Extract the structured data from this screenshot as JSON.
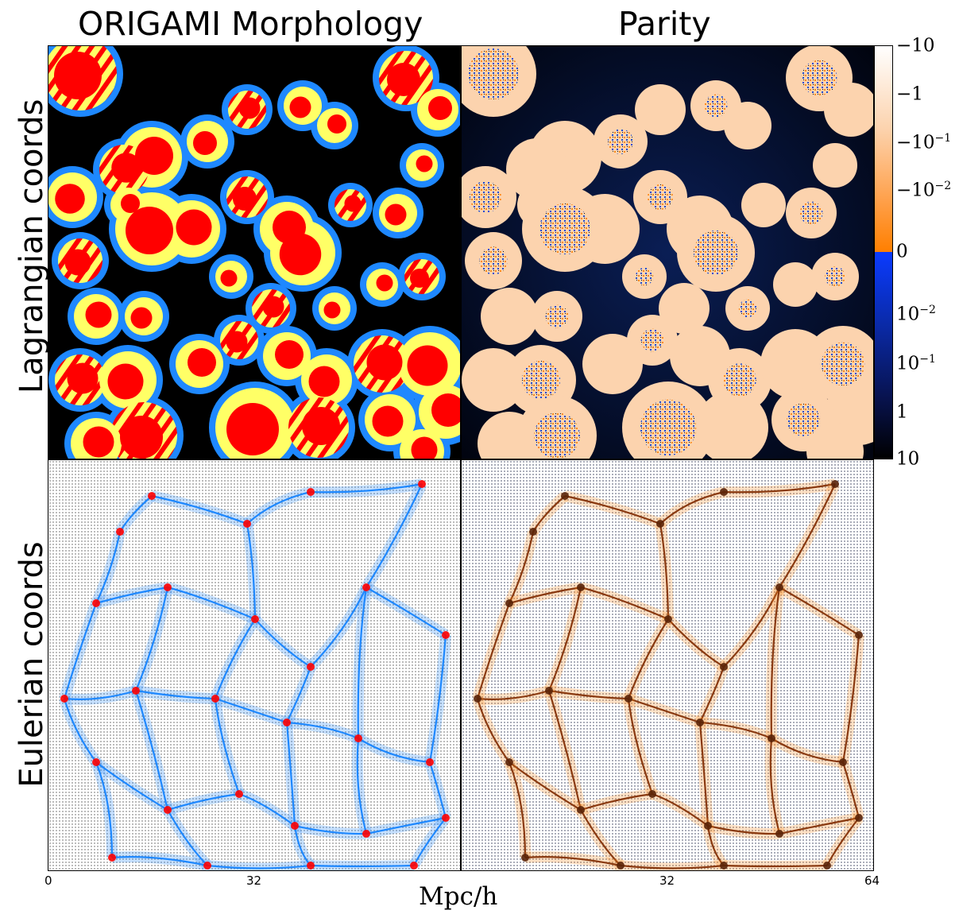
{
  "titles": {
    "left_column": "ORIGAMI Morphology",
    "right_column": "Parity"
  },
  "row_labels": {
    "top": "Lagrangian coords",
    "bottom": "Eulerian coords"
  },
  "x_axis": {
    "label": "Mpc/h",
    "left_ticks": [
      "0",
      "32"
    ],
    "right_ticks": [
      "32",
      "64"
    ]
  },
  "colorbar": {
    "tick_labels": [
      "−10",
      "−1",
      "−10",
      "−10",
      "0",
      "10",
      "10",
      "1",
      "10"
    ],
    "tick_exponents": [
      "",
      "",
      "−1",
      "−2",
      "",
      "−2",
      "−1",
      "",
      ""
    ],
    "colors": {
      "top": "#ffffff",
      "mid_orange": "#ff8a1a",
      "zero_orange": "#ff7f00",
      "zero_blue": "#0b3bff",
      "mid_blue": "#0a1a6e",
      "bottom": "#000000"
    }
  },
  "morphology_colors": {
    "void": "#000000",
    "wall": "#1e88ff",
    "filament": "#ffff66",
    "halo": "#ff0000"
  },
  "parity_colors": {
    "background": "#02071e",
    "stream": "#fcd3ae",
    "edge_orange": "#ff8a1a",
    "edge_blue": "#1b4bd6"
  }
}
